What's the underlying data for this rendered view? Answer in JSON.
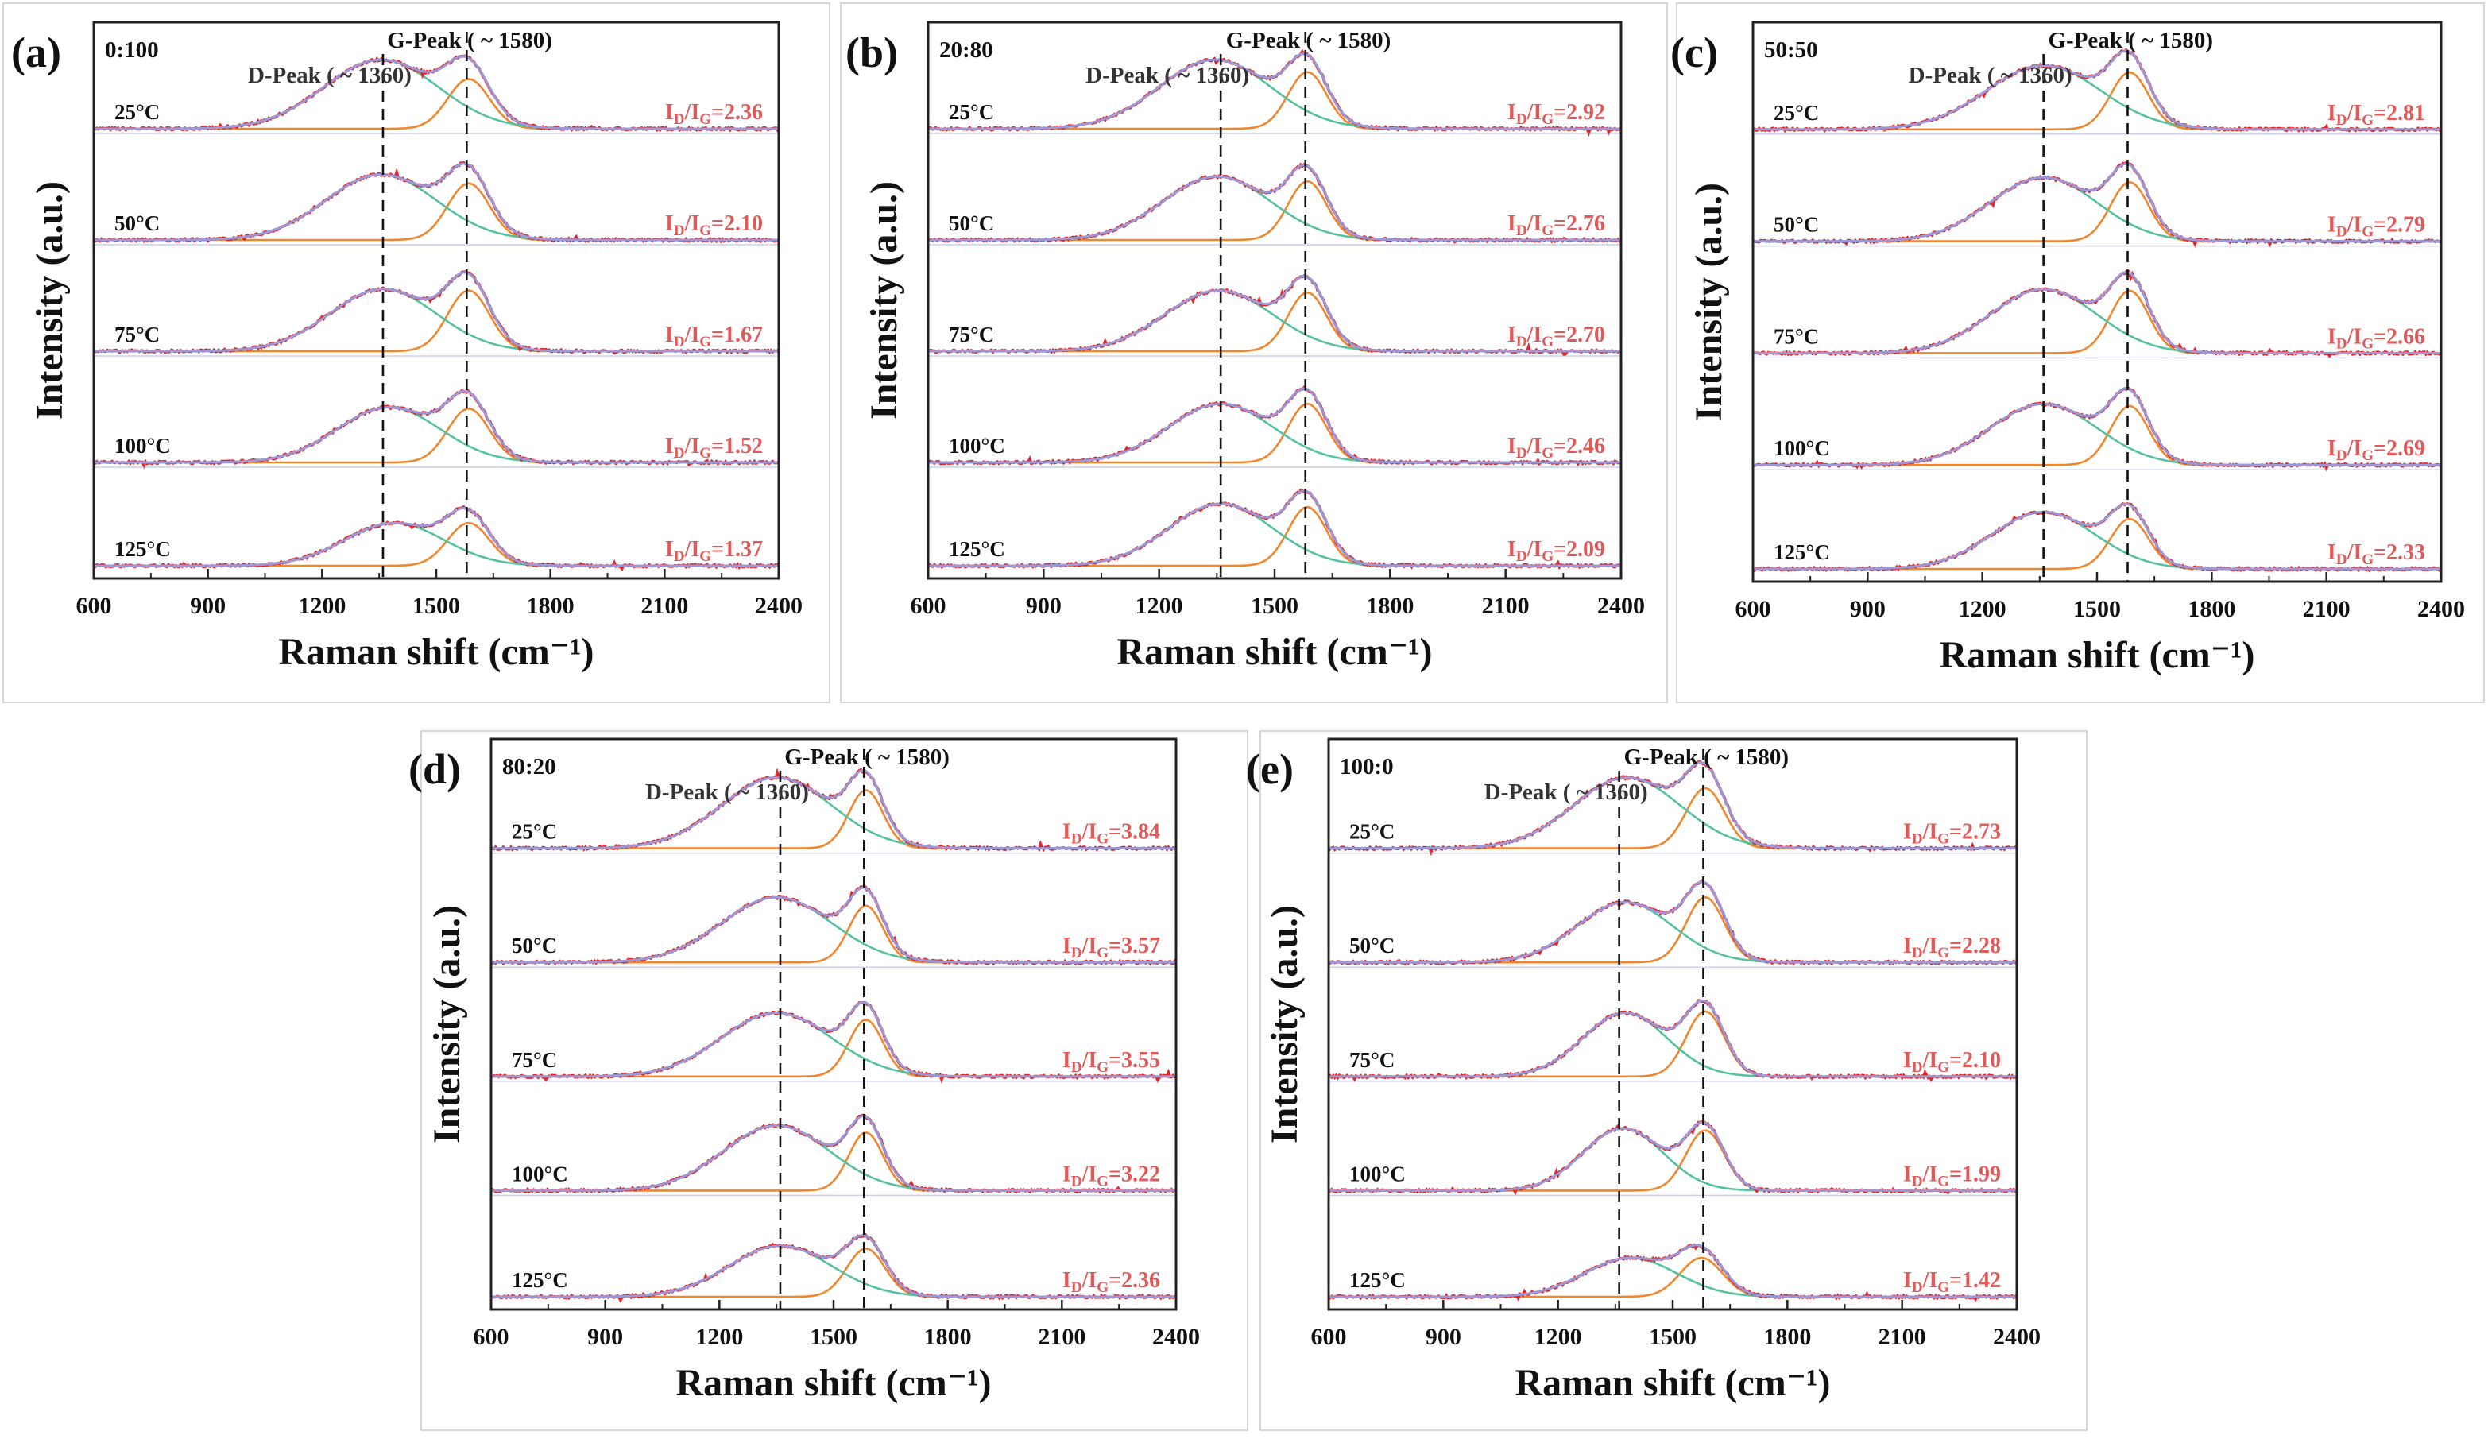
{
  "figure": {
    "x_axis_label": "Raman shift (cm⁻¹)",
    "y_axis_label": "Intensity (a.u.)",
    "d_peak_label": "D-Peak ( ~ 1360)",
    "g_peak_label": "G-Peak ( ~ 1580)",
    "ratio_prefix": "I",
    "ratio_sub_d": "D",
    "ratio_sub_g": "G",
    "colors": {
      "raw": "#e0282a",
      "fit": "#9a98d8",
      "d_component": "#56c1a0",
      "g_component": "#f0862e",
      "ratio_text": "#e05a5a",
      "axis": "#222222"
    }
  },
  "chart_data": [
    {
      "type": "line",
      "panel_label": "(a)",
      "composition": "0:100",
      "xlim": [
        600,
        2400
      ],
      "xticks": [
        600,
        900,
        1200,
        1500,
        1800,
        2100,
        2400
      ],
      "d_peak_line": 1360,
      "g_peak_line": 1580,
      "series": [
        {
          "temperature": "25°C",
          "ratio_value": "=2.36",
          "d_center": 1355,
          "d_amp": 1.0,
          "d_width": 150,
          "g_center": 1585,
          "g_amp": 0.72,
          "g_width": 55
        },
        {
          "temperature": "50°C",
          "ratio_value": "=2.10",
          "d_center": 1355,
          "d_amp": 0.95,
          "d_width": 145,
          "g_center": 1585,
          "g_amp": 0.82,
          "g_width": 55
        },
        {
          "temperature": "75°C",
          "ratio_value": "=1.67",
          "d_center": 1360,
          "d_amp": 0.9,
          "d_width": 140,
          "g_center": 1585,
          "g_amp": 0.88,
          "g_width": 55
        },
        {
          "temperature": "100°C",
          "ratio_value": "=1.52",
          "d_center": 1375,
          "d_amp": 0.8,
          "d_width": 135,
          "g_center": 1585,
          "g_amp": 0.78,
          "g_width": 55
        },
        {
          "temperature": "125°C",
          "ratio_value": "=1.37",
          "d_center": 1390,
          "d_amp": 0.62,
          "d_width": 130,
          "g_center": 1585,
          "g_amp": 0.62,
          "g_width": 55
        }
      ]
    },
    {
      "type": "line",
      "panel_label": "(b)",
      "composition": "20:80",
      "xlim": [
        600,
        2400
      ],
      "xticks": [
        600,
        900,
        1200,
        1500,
        1800,
        2100,
        2400
      ],
      "d_peak_line": 1360,
      "g_peak_line": 1580,
      "series": [
        {
          "temperature": "25°C",
          "ratio_value": "=2.92",
          "d_center": 1345,
          "d_amp": 1.0,
          "d_width": 145,
          "g_center": 1585,
          "g_amp": 0.82,
          "g_width": 50
        },
        {
          "temperature": "50°C",
          "ratio_value": "=2.76",
          "d_center": 1350,
          "d_amp": 0.92,
          "d_width": 140,
          "g_center": 1585,
          "g_amp": 0.85,
          "g_width": 50
        },
        {
          "temperature": "75°C",
          "ratio_value": "=2.70",
          "d_center": 1355,
          "d_amp": 0.88,
          "d_width": 140,
          "g_center": 1585,
          "g_amp": 0.85,
          "g_width": 50
        },
        {
          "temperature": "100°C",
          "ratio_value": "=2.46",
          "d_center": 1360,
          "d_amp": 0.85,
          "d_width": 135,
          "g_center": 1585,
          "g_amp": 0.85,
          "g_width": 50
        },
        {
          "temperature": "125°C",
          "ratio_value": "=2.09",
          "d_center": 1360,
          "d_amp": 0.9,
          "d_width": 135,
          "g_center": 1585,
          "g_amp": 0.85,
          "g_width": 50
        }
      ]
    },
    {
      "type": "line",
      "panel_label": "(c)",
      "composition": "50:50",
      "xlim": [
        600,
        2400
      ],
      "xticks": [
        600,
        900,
        1200,
        1500,
        1800,
        2100,
        2400
      ],
      "d_peak_line": 1360,
      "g_peak_line": 1580,
      "series": [
        {
          "temperature": "25°C",
          "ratio_value": "=2.81",
          "d_center": 1360,
          "d_amp": 0.92,
          "d_width": 150,
          "g_center": 1585,
          "g_amp": 0.82,
          "g_width": 50
        },
        {
          "temperature": "50°C",
          "ratio_value": "=2.79",
          "d_center": 1360,
          "d_amp": 0.92,
          "d_width": 140,
          "g_center": 1585,
          "g_amp": 0.85,
          "g_width": 50
        },
        {
          "temperature": "75°C",
          "ratio_value": "=2.66",
          "d_center": 1360,
          "d_amp": 0.92,
          "d_width": 140,
          "g_center": 1585,
          "g_amp": 0.9,
          "g_width": 50
        },
        {
          "temperature": "100°C",
          "ratio_value": "=2.69",
          "d_center": 1360,
          "d_amp": 0.88,
          "d_width": 140,
          "g_center": 1585,
          "g_amp": 0.85,
          "g_width": 50
        },
        {
          "temperature": "125°C",
          "ratio_value": "=2.33",
          "d_center": 1360,
          "d_amp": 0.82,
          "d_width": 135,
          "g_center": 1585,
          "g_amp": 0.72,
          "g_width": 50
        }
      ]
    },
    {
      "type": "line",
      "panel_label": "(d)",
      "composition": "80:20",
      "xlim": [
        600,
        2400
      ],
      "xticks": [
        600,
        900,
        1200,
        1500,
        1800,
        2100,
        2400
      ],
      "d_peak_line": 1360,
      "g_peak_line": 1580,
      "series": [
        {
          "temperature": "25°C",
          "ratio_value": "=3.84",
          "d_center": 1350,
          "d_amp": 1.0,
          "d_width": 145,
          "g_center": 1585,
          "g_amp": 0.82,
          "g_width": 45
        },
        {
          "temperature": "50°C",
          "ratio_value": "=3.57",
          "d_center": 1350,
          "d_amp": 0.92,
          "d_width": 145,
          "g_center": 1585,
          "g_amp": 0.8,
          "g_width": 45
        },
        {
          "temperature": "75°C",
          "ratio_value": "=3.55",
          "d_center": 1350,
          "d_amp": 0.9,
          "d_width": 145,
          "g_center": 1585,
          "g_amp": 0.8,
          "g_width": 45
        },
        {
          "temperature": "100°C",
          "ratio_value": "=3.22",
          "d_center": 1350,
          "d_amp": 0.92,
          "d_width": 140,
          "g_center": 1585,
          "g_amp": 0.82,
          "g_width": 45
        },
        {
          "temperature": "125°C",
          "ratio_value": "=2.36",
          "d_center": 1360,
          "d_amp": 0.72,
          "d_width": 135,
          "g_center": 1585,
          "g_amp": 0.68,
          "g_width": 50
        }
      ]
    },
    {
      "type": "line",
      "panel_label": "(e)",
      "composition": "100:0",
      "xlim": [
        600,
        2400
      ],
      "xticks": [
        600,
        900,
        1200,
        1500,
        1800,
        2100,
        2400
      ],
      "d_peak_line": 1360,
      "g_peak_line": 1580,
      "series": [
        {
          "temperature": "25°C",
          "ratio_value": "=2.73",
          "d_center": 1380,
          "d_amp": 1.0,
          "d_width": 140,
          "g_center": 1585,
          "g_amp": 0.85,
          "g_width": 50
        },
        {
          "temperature": "50°C",
          "ratio_value": "=2.28",
          "d_center": 1375,
          "d_amp": 0.85,
          "d_width": 125,
          "g_center": 1585,
          "g_amp": 0.92,
          "g_width": 50
        },
        {
          "temperature": "75°C",
          "ratio_value": "=2.10",
          "d_center": 1375,
          "d_amp": 0.9,
          "d_width": 110,
          "g_center": 1585,
          "g_amp": 0.92,
          "g_width": 50
        },
        {
          "temperature": "100°C",
          "ratio_value": "=1.99",
          "d_center": 1370,
          "d_amp": 0.88,
          "d_width": 105,
          "g_center": 1585,
          "g_amp": 0.85,
          "g_width": 50
        },
        {
          "temperature": "125°C",
          "ratio_value": "=1.42",
          "d_center": 1390,
          "d_amp": 0.55,
          "d_width": 120,
          "g_center": 1575,
          "g_amp": 0.55,
          "g_width": 55
        }
      ]
    }
  ]
}
